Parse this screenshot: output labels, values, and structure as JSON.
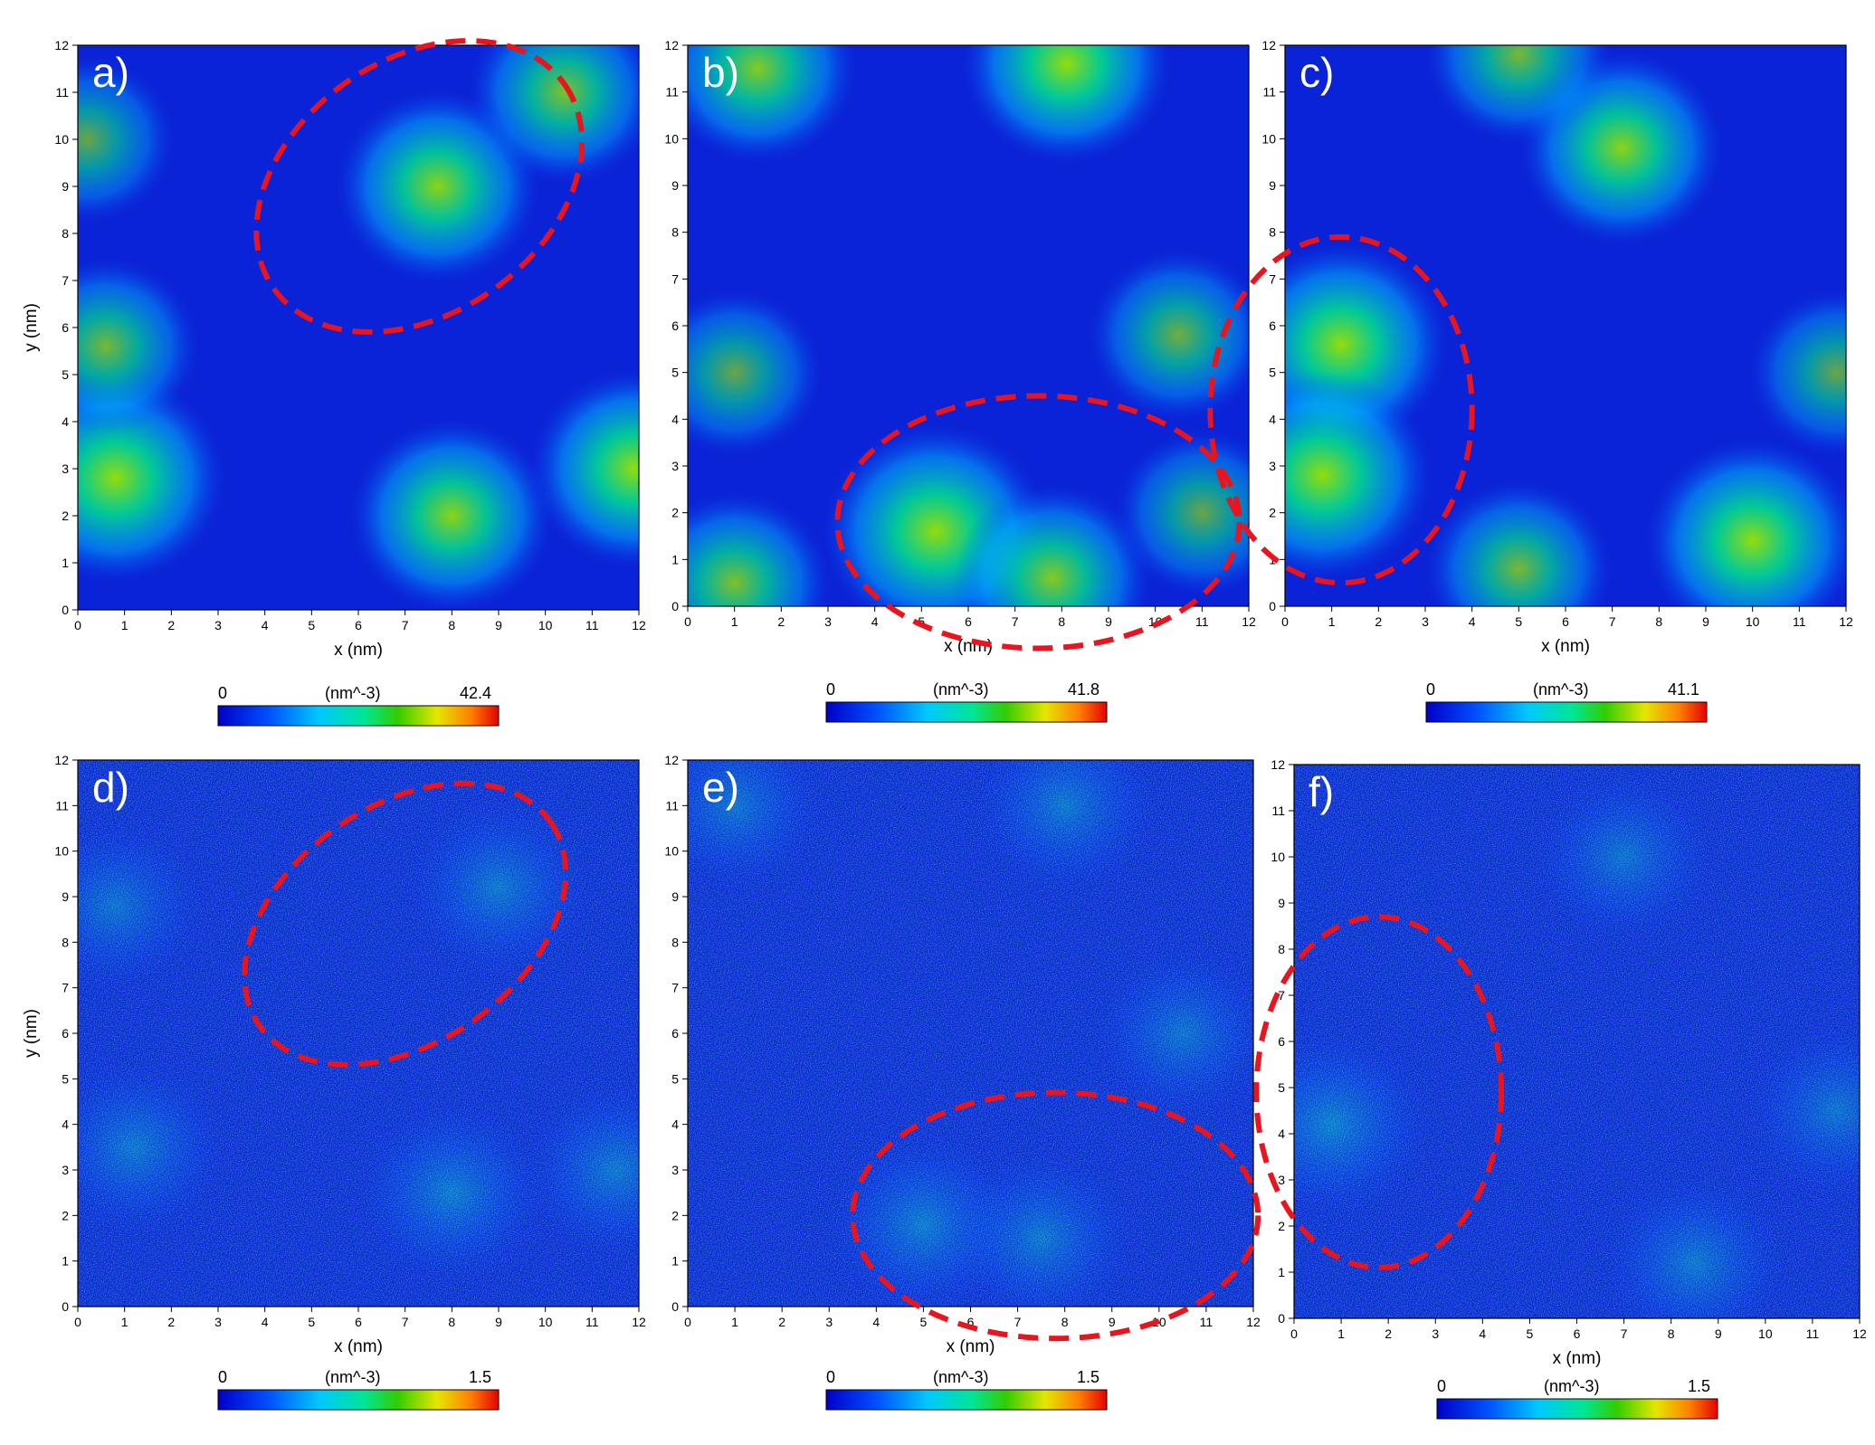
{
  "figure_labels": [
    "a)",
    "b)",
    "c)",
    "d)",
    "e)",
    "f)"
  ],
  "chart_data": [
    {
      "panel": "a)",
      "type": "heatmap",
      "xlabel": "x (nm)",
      "ylabel": "y (nm)",
      "xlim": [
        0,
        12
      ],
      "ylim": [
        0,
        12
      ],
      "x_ticks": [
        "0",
        "1",
        "2",
        "3",
        "4",
        "5",
        "6",
        "7",
        "8",
        "9",
        "10",
        "11",
        "12"
      ],
      "y_ticks": [
        "0",
        "1",
        "2",
        "3",
        "4",
        "5",
        "6",
        "7",
        "8",
        "9",
        "10",
        "11",
        "12"
      ],
      "colorbar": {
        "min_label": "0",
        "unit_label": "(nm^-3)",
        "max_label": "42.4",
        "range": [
          0,
          42.4
        ]
      },
      "blobs": [
        {
          "x": 0.8,
          "y": 2.8,
          "intensity": 0.75
        },
        {
          "x": 0.6,
          "y": 5.6,
          "intensity": 0.45
        },
        {
          "x": 8.0,
          "y": 2.0,
          "intensity": 0.6
        },
        {
          "x": 7.7,
          "y": 9.0,
          "intensity": 0.6
        },
        {
          "x": 10.4,
          "y": 11.0,
          "intensity": 0.5
        },
        {
          "x": 11.9,
          "y": 3.0,
          "intensity": 0.65
        },
        {
          "x": 0.2,
          "y": 10.0,
          "intensity": 0.35
        }
      ],
      "highlight_ellipse": {
        "cx": 7.3,
        "cy": 9.0,
        "rx": 3.8,
        "ry": 2.7,
        "rotation": -35
      }
    },
    {
      "panel": "b)",
      "type": "heatmap",
      "xlabel": "x (nm)",
      "ylabel": "",
      "xlim": [
        0,
        12
      ],
      "ylim": [
        0,
        12
      ],
      "x_ticks": [
        "0",
        "1",
        "2",
        "3",
        "4",
        "5",
        "6",
        "7",
        "8",
        "9",
        "10",
        "11",
        "12"
      ],
      "y_ticks": [
        "0",
        "1",
        "2",
        "3",
        "4",
        "5",
        "6",
        "7",
        "8",
        "9",
        "10",
        "11",
        "12"
      ],
      "colorbar": {
        "min_label": "0",
        "unit_label": "(nm^-3)",
        "max_label": "41.8",
        "range": [
          0,
          41.8
        ]
      },
      "blobs": [
        {
          "x": 1.5,
          "y": 11.5,
          "intensity": 0.55
        },
        {
          "x": 8.1,
          "y": 11.6,
          "intensity": 0.65
        },
        {
          "x": 10.5,
          "y": 5.8,
          "intensity": 0.4
        },
        {
          "x": 1.0,
          "y": 5.0,
          "intensity": 0.35
        },
        {
          "x": 5.3,
          "y": 1.6,
          "intensity": 0.8
        },
        {
          "x": 7.8,
          "y": 0.6,
          "intensity": 0.55
        },
        {
          "x": 1.0,
          "y": 0.5,
          "intensity": 0.5
        },
        {
          "x": 11.0,
          "y": 2.0,
          "intensity": 0.35
        }
      ],
      "highlight_ellipse": {
        "cx": 7.5,
        "cy": 1.8,
        "rx": 4.3,
        "ry": 2.7,
        "rotation": 0
      }
    },
    {
      "panel": "c)",
      "type": "heatmap",
      "xlabel": "x (nm)",
      "ylabel": "",
      "xlim": [
        0,
        12
      ],
      "ylim": [
        0,
        12
      ],
      "x_ticks": [
        "0",
        "1",
        "2",
        "3",
        "4",
        "5",
        "6",
        "7",
        "8",
        "9",
        "10",
        "11",
        "12"
      ],
      "y_ticks": [
        "0",
        "1",
        "2",
        "3",
        "4",
        "5",
        "6",
        "7",
        "8",
        "9",
        "10",
        "11",
        "12"
      ],
      "colorbar": {
        "min_label": "0",
        "unit_label": "(nm^-3)",
        "max_label": "41.1",
        "range": [
          0,
          41.1
        ]
      },
      "blobs": [
        {
          "x": 1.2,
          "y": 5.6,
          "intensity": 0.7
        },
        {
          "x": 0.8,
          "y": 2.8,
          "intensity": 0.75
        },
        {
          "x": 7.2,
          "y": 9.8,
          "intensity": 0.6
        },
        {
          "x": 5.0,
          "y": 0.8,
          "intensity": 0.45
        },
        {
          "x": 10.0,
          "y": 1.4,
          "intensity": 0.7
        },
        {
          "x": 11.8,
          "y": 5.0,
          "intensity": 0.35
        },
        {
          "x": 5.0,
          "y": 11.8,
          "intensity": 0.45
        }
      ],
      "highlight_ellipse": {
        "cx": 1.2,
        "cy": 4.2,
        "rx": 2.8,
        "ry": 3.7,
        "rotation": 0
      }
    },
    {
      "panel": "d)",
      "type": "heatmap",
      "xlabel": "x (nm)",
      "ylabel": "y (nm)",
      "xlim": [
        0,
        12
      ],
      "ylim": [
        0,
        12
      ],
      "x_ticks": [
        "0",
        "1",
        "2",
        "3",
        "4",
        "5",
        "6",
        "7",
        "8",
        "9",
        "10",
        "11",
        "12"
      ],
      "y_ticks": [
        "0",
        "1",
        "2",
        "3",
        "4",
        "5",
        "6",
        "7",
        "8",
        "9",
        "10",
        "11",
        "12"
      ],
      "colorbar": {
        "min_label": "0",
        "unit_label": "(nm^-3)",
        "max_label": "1.5",
        "range": [
          0,
          1.5
        ]
      },
      "blobs": [
        {
          "x": 1.2,
          "y": 3.5,
          "intensity": 0.3
        },
        {
          "x": 8.0,
          "y": 2.5,
          "intensity": 0.35
        },
        {
          "x": 9.0,
          "y": 9.2,
          "intensity": 0.3
        },
        {
          "x": 11.5,
          "y": 3.0,
          "intensity": 0.3
        },
        {
          "x": 0.8,
          "y": 8.8,
          "intensity": 0.25
        }
      ],
      "highlight_ellipse": {
        "cx": 7.0,
        "cy": 8.4,
        "rx": 3.8,
        "ry": 2.6,
        "rotation": -35
      }
    },
    {
      "panel": "e)",
      "type": "heatmap",
      "xlabel": "x (nm)",
      "ylabel": "",
      "xlim": [
        0,
        12
      ],
      "ylim": [
        0,
        12
      ],
      "x_ticks": [
        "0",
        "1",
        "2",
        "3",
        "4",
        "5",
        "6",
        "7",
        "8",
        "9",
        "10",
        "11",
        "12"
      ],
      "y_ticks": [
        "0",
        "1",
        "2",
        "3",
        "4",
        "5",
        "6",
        "7",
        "8",
        "9",
        "10",
        "11",
        "12"
      ],
      "colorbar": {
        "min_label": "0",
        "unit_label": "(nm^-3)",
        "max_label": "1.5",
        "range": [
          0,
          1.5
        ]
      },
      "blobs": [
        {
          "x": 5.0,
          "y": 1.8,
          "intensity": 0.35
        },
        {
          "x": 7.5,
          "y": 1.5,
          "intensity": 0.3
        },
        {
          "x": 8.0,
          "y": 11.0,
          "intensity": 0.3
        },
        {
          "x": 1.0,
          "y": 11.0,
          "intensity": 0.25
        },
        {
          "x": 10.5,
          "y": 6.0,
          "intensity": 0.25
        }
      ],
      "highlight_ellipse": {
        "cx": 7.8,
        "cy": 2.0,
        "rx": 4.3,
        "ry": 2.7,
        "rotation": 0
      }
    },
    {
      "panel": "f)",
      "type": "heatmap",
      "xlabel": "x (nm)",
      "ylabel": "",
      "xlim": [
        0,
        12
      ],
      "ylim": [
        0,
        12
      ],
      "x_ticks": [
        "0",
        "1",
        "2",
        "3",
        "4",
        "5",
        "6",
        "7",
        "8",
        "9",
        "10",
        "11",
        "12"
      ],
      "y_ticks": [
        "0",
        "1",
        "2",
        "3",
        "4",
        "5",
        "6",
        "7",
        "8",
        "9",
        "10",
        "11",
        "12"
      ],
      "colorbar": {
        "min_label": "0",
        "unit_label": "(nm^-3)",
        "max_label": "1.5",
        "range": [
          0,
          1.5
        ]
      },
      "blobs": [
        {
          "x": 0.8,
          "y": 4.2,
          "intensity": 0.4
        },
        {
          "x": 8.5,
          "y": 1.2,
          "intensity": 0.3
        },
        {
          "x": 11.5,
          "y": 4.5,
          "intensity": 0.25
        },
        {
          "x": 7.0,
          "y": 10.0,
          "intensity": 0.25
        }
      ],
      "highlight_ellipse": {
        "cx": 1.8,
        "cy": 4.9,
        "rx": 2.6,
        "ry": 3.8,
        "rotation": 0
      }
    }
  ],
  "colors": {
    "background_low": "#0b23d6",
    "colormap": [
      "#0000c8",
      "#0050ff",
      "#00c8ff",
      "#00e696",
      "#33cc00",
      "#e6e600",
      "#ff8000",
      "#e60000"
    ],
    "highlight": "#e8141e",
    "axis": "#000000"
  }
}
